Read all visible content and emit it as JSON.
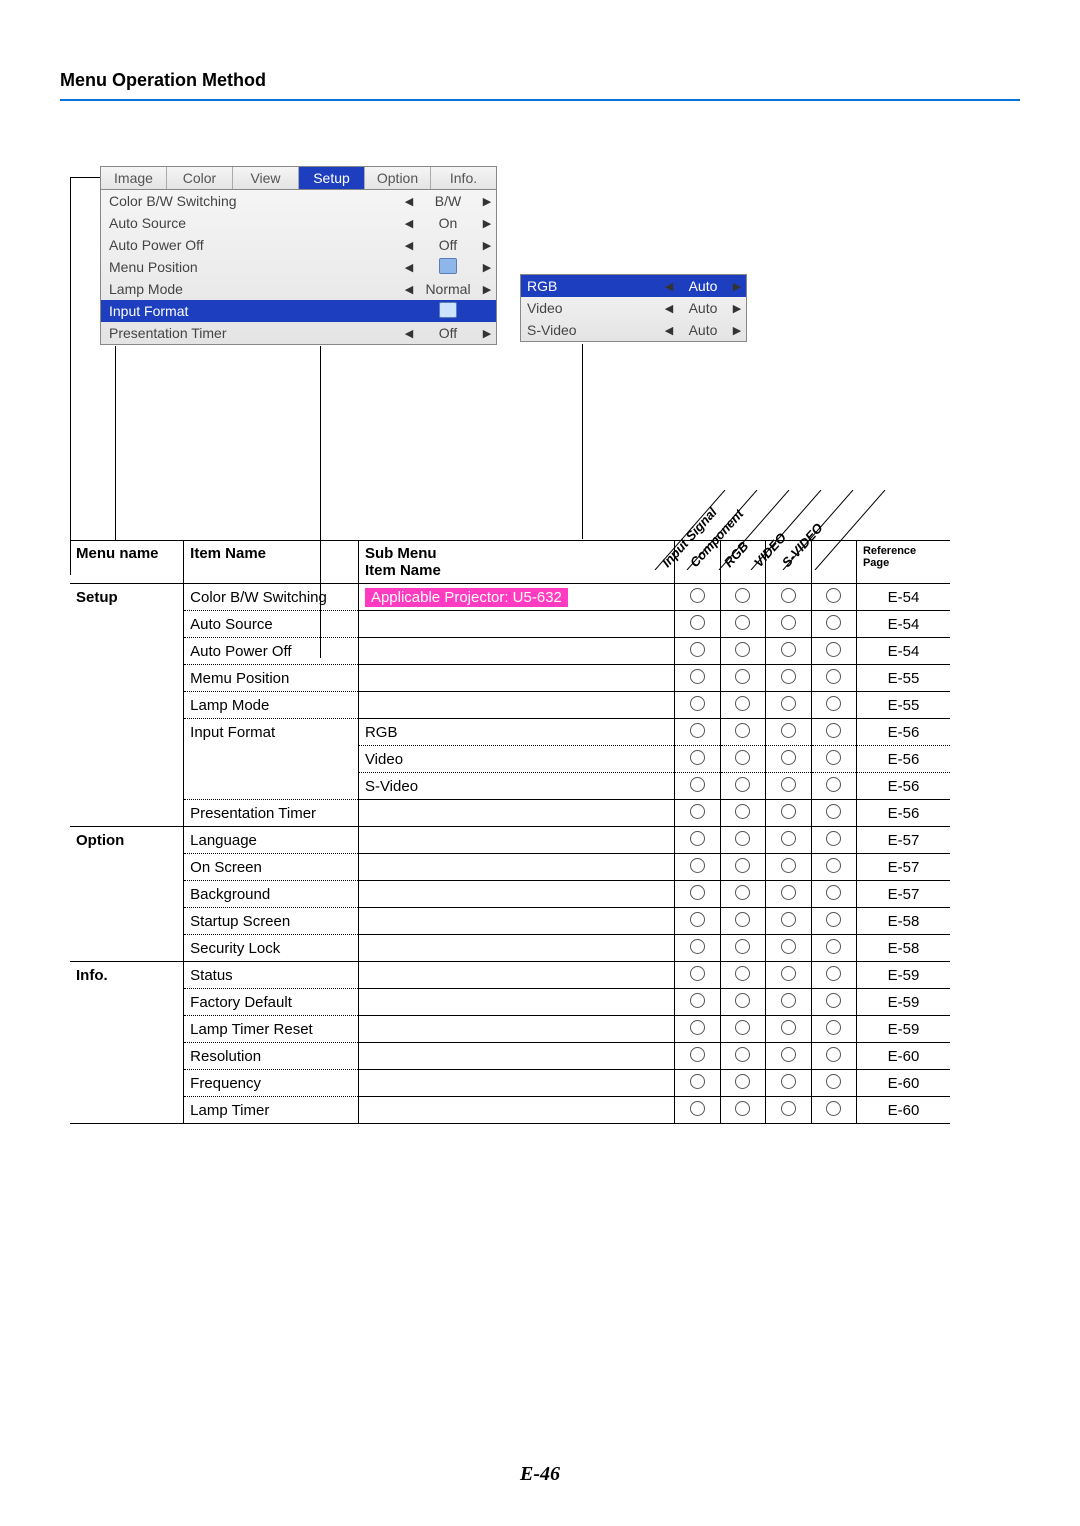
{
  "pageTitle": "Menu Operation Method",
  "pageNumber": "E-46",
  "osd": {
    "tabs": [
      "Image",
      "Color",
      "View",
      "Setup",
      "Option",
      "Info."
    ],
    "activeTab": "Setup",
    "rows": [
      {
        "label": "Color B/W Switching",
        "value": "B/W",
        "type": "arrow"
      },
      {
        "label": "Auto Source",
        "value": "On",
        "type": "arrow"
      },
      {
        "label": "Auto Power Off",
        "value": "Off",
        "type": "arrow"
      },
      {
        "label": "Menu Position",
        "value": "icon",
        "type": "arrow"
      },
      {
        "label": "Lamp Mode",
        "value": "Normal",
        "type": "arrow"
      },
      {
        "label": "Input Format",
        "value": "enter",
        "type": "enter",
        "selected": true
      },
      {
        "label": "Presentation Timer",
        "value": "Off",
        "type": "arrow"
      }
    ],
    "sub": [
      {
        "label": "RGB",
        "value": "Auto",
        "selected": true
      },
      {
        "label": "Video",
        "value": "Auto"
      },
      {
        "label": "S-Video",
        "value": "Auto"
      }
    ]
  },
  "diagHeaders": [
    "Input Signal",
    "Component",
    "RGB",
    "VIDEO",
    "S-VIDEO"
  ],
  "table": {
    "headers": {
      "menu": "Menu name",
      "item": "Item Name",
      "sub1": "Sub Menu",
      "sub2": "Item Name",
      "ref1": "Reference",
      "ref2": "Page"
    },
    "rows": [
      {
        "menu": "Setup",
        "item": "Color B/W Switching",
        "sub": "Applicable Projector: U5-632",
        "subPink": true,
        "page": "E-54",
        "itemBorder": "dot",
        "subBorder": "sol"
      },
      {
        "menu": "",
        "item": "Auto Source",
        "sub": "",
        "page": "E-54",
        "itemBorder": "dot",
        "subBorder": "sol"
      },
      {
        "menu": "",
        "item": "Auto Power Off",
        "sub": "",
        "page": "E-54",
        "itemBorder": "dot",
        "subBorder": "sol"
      },
      {
        "menu": "",
        "item": "Memu Position",
        "sub": "",
        "page": "E-55",
        "itemBorder": "dot",
        "subBorder": "sol"
      },
      {
        "menu": "",
        "item": "Lamp Mode",
        "sub": "",
        "page": "E-55",
        "itemBorder": "dot",
        "subBorder": "sol"
      },
      {
        "menu": "",
        "item": "Input Format",
        "sub": "RGB",
        "page": "E-56",
        "itemBorder": "none",
        "subBorder": "dot"
      },
      {
        "menu": "",
        "item": "",
        "sub": "Video",
        "page": "E-56",
        "itemBorder": "none",
        "subBorder": "dot"
      },
      {
        "menu": "",
        "item": "",
        "sub": "S-Video",
        "page": "E-56",
        "itemBorder": "dot",
        "subBorder": "sol"
      },
      {
        "menu": "",
        "item": "Presentation Timer",
        "sub": "",
        "page": "E-56",
        "itemBorder": "sol",
        "subBorder": "sol",
        "menuBorder": "sol"
      },
      {
        "menu": "Option",
        "item": "Language",
        "sub": "",
        "page": "E-57",
        "itemBorder": "dot",
        "subBorder": "sol"
      },
      {
        "menu": "",
        "item": "On Screen",
        "sub": "",
        "page": "E-57",
        "itemBorder": "dot",
        "subBorder": "sol"
      },
      {
        "menu": "",
        "item": "Background",
        "sub": "",
        "page": "E-57",
        "itemBorder": "dot",
        "subBorder": "sol"
      },
      {
        "menu": "",
        "item": "Startup Screen",
        "sub": "",
        "page": "E-58",
        "itemBorder": "dot",
        "subBorder": "sol"
      },
      {
        "menu": "",
        "item": "Security Lock",
        "sub": "",
        "page": "E-58",
        "itemBorder": "sol",
        "subBorder": "sol",
        "menuBorder": "sol"
      },
      {
        "menu": "Info.",
        "item": "Status",
        "sub": "",
        "page": "E-59",
        "itemBorder": "dot",
        "subBorder": "sol"
      },
      {
        "menu": "",
        "item": "Factory Default",
        "sub": "",
        "page": "E-59",
        "itemBorder": "dot",
        "subBorder": "sol"
      },
      {
        "menu": "",
        "item": "Lamp Timer Reset",
        "sub": "",
        "page": "E-59",
        "itemBorder": "dot",
        "subBorder": "sol"
      },
      {
        "menu": "",
        "item": "Resolution",
        "sub": "",
        "page": "E-60",
        "itemBorder": "dot",
        "subBorder": "sol"
      },
      {
        "menu": "",
        "item": "Frequency",
        "sub": "",
        "page": "E-60",
        "itemBorder": "dot",
        "subBorder": "sol"
      },
      {
        "menu": "",
        "item": "Lamp Timer",
        "sub": "",
        "page": "E-60",
        "itemBorder": "sol",
        "subBorder": "sol",
        "menuBorder": "sol"
      }
    ]
  }
}
